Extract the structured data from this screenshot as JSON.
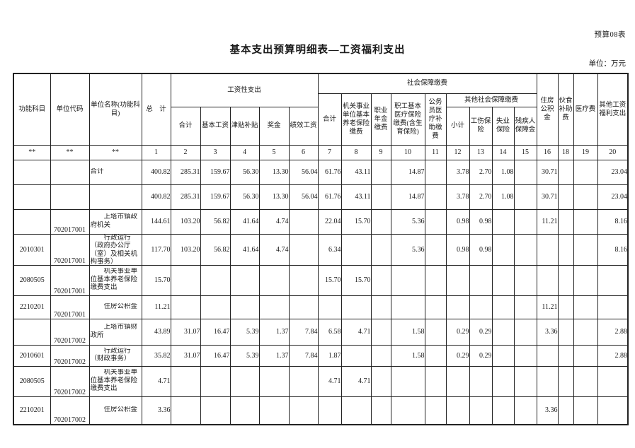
{
  "page": {
    "form_label": "预算08表",
    "title": "基本支出预算明细表—工资福利支出",
    "unit_label": "单位：万元"
  },
  "colors": {
    "background": "#ffffff",
    "text": "#1a1a1a",
    "border": "#222222"
  },
  "table": {
    "header": {
      "func_subject": "功能科目",
      "unit_code": "单位代码",
      "unit_name": "单位名称(功能科目)",
      "total": "总　计",
      "wage_group": "工资性支出",
      "wage_cols": [
        "合计",
        "基本工资",
        "津贴补贴",
        "奖金",
        "绩效工资"
      ],
      "social_group": "社会保障缴费",
      "social_cols": [
        "合计",
        "机关事业单位基本养老保险缴费",
        "职业年金缴费",
        "职工基本医疗保险缴费(含生育保险)",
        "公务员医疗补助缴费"
      ],
      "other_social_group": "其他社会保障缴费",
      "other_social_cols": [
        "小计",
        "工伤保险",
        "失业保险",
        "残疾人保障金"
      ],
      "housing": "住房公积金",
      "food": "伙食补助费",
      "medical_fee": "医疗费",
      "other_wage": "其他工资福利支出"
    },
    "index_row": [
      "**",
      "**",
      "**",
      "1",
      "2",
      "3",
      "4",
      "5",
      "6",
      "7",
      "8",
      "9",
      "10",
      "11",
      "12",
      "13",
      "14",
      "15",
      "16",
      "18",
      "19",
      "20"
    ],
    "rows": [
      [
        "",
        "",
        "合计",
        "400.82",
        "285.31",
        "159.67",
        "56.30",
        "13.30",
        "56.04",
        "61.76",
        "43.11",
        "",
        "14.87",
        "",
        "3.78",
        "2.70",
        "1.08",
        "",
        "30.71",
        "",
        "",
        "23.04"
      ],
      [
        "",
        "",
        "",
        "400.82",
        "285.31",
        "159.67",
        "56.30",
        "13.30",
        "56.04",
        "61.76",
        "43.11",
        "",
        "14.87",
        "",
        "3.78",
        "2.70",
        "1.08",
        "",
        "30.71",
        "",
        "",
        "23.04"
      ],
      [
        "",
        "702017001",
        "上塔市镇政府机关",
        "144.61",
        "103.20",
        "56.82",
        "41.64",
        "4.74",
        "",
        "22.04",
        "15.70",
        "",
        "5.36",
        "",
        "0.98",
        "0.98",
        "",
        "",
        "11.21",
        "",
        "",
        "8.16"
      ],
      [
        "2010301",
        "702017001",
        "行政运行（政府办公厅（室）及相关机构事务）",
        "117.70",
        "103.20",
        "56.82",
        "41.64",
        "4.74",
        "",
        "6.34",
        "",
        "",
        "5.36",
        "",
        "0.98",
        "0.98",
        "",
        "",
        "",
        "",
        "",
        "8.16"
      ],
      [
        "2080505",
        "702017001",
        "机关事业单位基本养老保险缴费支出",
        "15.70",
        "",
        "",
        "",
        "",
        "",
        "15.70",
        "15.70",
        "",
        "",
        "",
        "",
        "",
        "",
        "",
        "",
        "",
        "",
        ""
      ],
      [
        "2210201",
        "702017001",
        "住房公积金",
        "11.21",
        "",
        "",
        "",
        "",
        "",
        "",
        "",
        "",
        "",
        "",
        "",
        "",
        "",
        "",
        "11.21",
        "",
        "",
        ""
      ],
      [
        "",
        "702017002",
        "上塔市镇财政所",
        "43.89",
        "31.07",
        "16.47",
        "5.39",
        "1.37",
        "7.84",
        "6.58",
        "4.71",
        "",
        "1.58",
        "",
        "0.29",
        "0.29",
        "",
        "",
        "3.36",
        "",
        "",
        "2.88"
      ],
      [
        "2010601",
        "702017002",
        "行政运行（财政事务）",
        "35.82",
        "31.07",
        "16.47",
        "5.39",
        "1.37",
        "7.84",
        "1.87",
        "",
        "",
        "1.58",
        "",
        "0.29",
        "0.29",
        "",
        "",
        "",
        "",
        "",
        "2.88"
      ],
      [
        "2080505",
        "702017002",
        "机关事业单位基本养老保险缴费支出",
        "4.71",
        "",
        "",
        "",
        "",
        "",
        "4.71",
        "4.71",
        "",
        "",
        "",
        "",
        "",
        "",
        "",
        "",
        "",
        "",
        ""
      ],
      [
        "2210201",
        "702017002",
        "住房公积金",
        "3.36",
        "",
        "",
        "",
        "",
        "",
        "",
        "",
        "",
        "",
        "",
        "",
        "",
        "",
        "",
        "3.36",
        "",
        "",
        ""
      ]
    ]
  }
}
